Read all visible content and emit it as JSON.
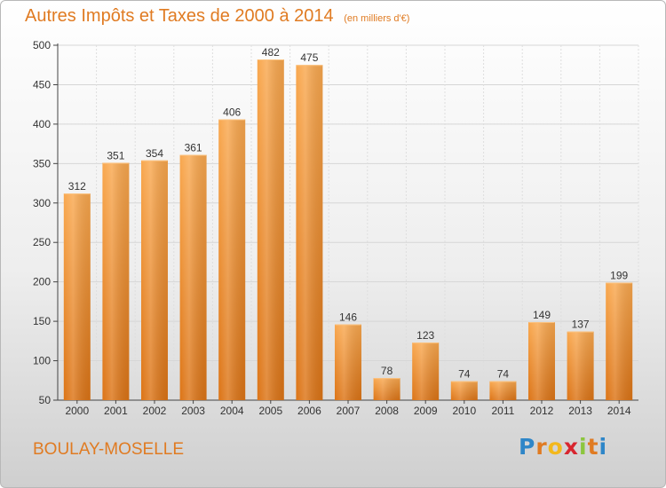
{
  "header": {
    "title": "Autres Impôts et Taxes de 2000 à 2014",
    "subtitle": "(en milliers d'€)"
  },
  "footer": {
    "city": "BOULAY-MOSELLE",
    "logo_letters": [
      "P",
      "r",
      "o",
      "x",
      "i",
      "t",
      "i"
    ],
    "logo_colors": [
      "#2e86c8",
      "#e07b22",
      "#f3b81c",
      "#d8262f",
      "#8cc63e",
      "#e07b22",
      "#2e86c8"
    ]
  },
  "chart_data": {
    "type": "bar",
    "title": "Autres Impôts et Taxes de 2000 à 2014",
    "subtitle": "(en milliers d'€)",
    "xlabel": "",
    "ylabel": "",
    "categories": [
      "2000",
      "2001",
      "2002",
      "2003",
      "2004",
      "2005",
      "2006",
      "2007",
      "2008",
      "2009",
      "2010",
      "2011",
      "2012",
      "2013",
      "2014"
    ],
    "values": [
      312,
      351,
      354,
      361,
      406,
      482,
      475,
      146,
      78,
      123,
      74,
      74,
      149,
      137,
      199
    ],
    "data_labels": [
      "312",
      "351",
      "354",
      "361",
      "406",
      "482",
      "475",
      "146",
      "78",
      "123",
      "74",
      "74",
      "149",
      "137",
      "199"
    ],
    "ylim": [
      50,
      500
    ],
    "yticks": [
      50,
      100,
      150,
      200,
      250,
      300,
      350,
      400,
      450,
      500
    ],
    "ytick_labels": [
      "50",
      "100",
      "150",
      "200",
      "250",
      "300",
      "350",
      "400",
      "450",
      "500"
    ],
    "grid": true,
    "bar_color_light": "#f9a84f",
    "bar_color_dark": "#dc7416"
  }
}
